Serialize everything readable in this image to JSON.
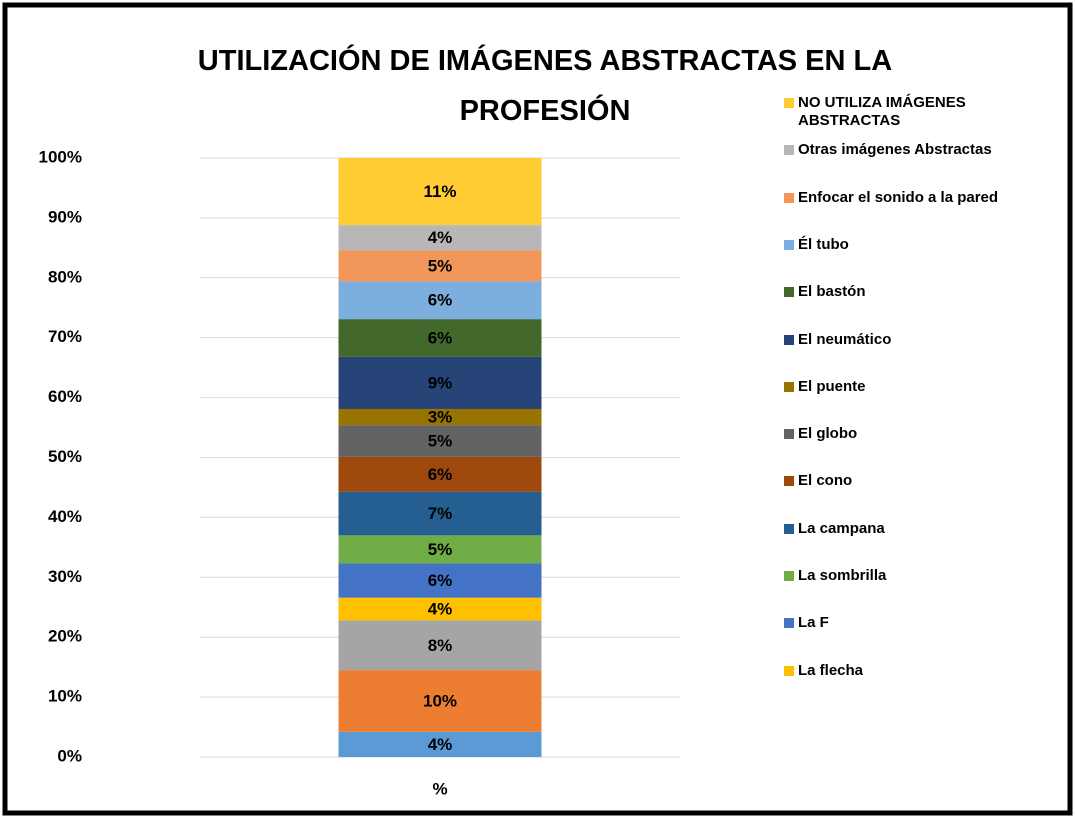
{
  "chart_data": {
    "type": "stacked_bar",
    "title": "UTILIZACIÓN DE IMÁGENES ABSTRACTAS EN LA PROFESIÓN",
    "categories": [
      "%"
    ],
    "ylim": [
      0,
      100
    ],
    "yticks": [
      {
        "value": 0,
        "label": "0%"
      },
      {
        "value": 10,
        "label": "10%"
      },
      {
        "value": 20,
        "label": "20%"
      },
      {
        "value": 30,
        "label": "30%"
      },
      {
        "value": 40,
        "label": "40%"
      },
      {
        "value": 50,
        "label": "50%"
      },
      {
        "value": 60,
        "label": "60%"
      },
      {
        "value": 70,
        "label": "70%"
      },
      {
        "value": 80,
        "label": "80%"
      },
      {
        "value": 90,
        "label": "90%"
      },
      {
        "value": 100,
        "label": "100%"
      }
    ],
    "grid": true,
    "legend": "right",
    "series": [
      {
        "color": "#5b9bd5",
        "values": [
          4.2
        ],
        "value_labels": [
          "4%"
        ]
      },
      {
        "color": "#ed7d31",
        "values": [
          10.3
        ],
        "value_labels": [
          "10%"
        ]
      },
      {
        "color": "#a5a5a5",
        "values": [
          8.3
        ],
        "value_labels": [
          "8%"
        ]
      },
      {
        "name": "La flecha",
        "color": "#ffc000",
        "values": [
          3.8
        ],
        "value_labels": [
          "4%"
        ]
      },
      {
        "name": "La F",
        "color": "#4472c4",
        "values": [
          5.7
        ],
        "value_labels": [
          "6%"
        ]
      },
      {
        "name": "La sombrilla",
        "color": "#70ad47",
        "values": [
          4.7
        ],
        "value_labels": [
          "5%"
        ]
      },
      {
        "name": "La campana",
        "color": "#255e91",
        "values": [
          7.3
        ],
        "value_labels": [
          "7%"
        ]
      },
      {
        "name": "El cono",
        "color": "#9e480e",
        "values": [
          5.8
        ],
        "value_labels": [
          "6%"
        ]
      },
      {
        "name": "El globo",
        "color": "#636363",
        "values": [
          5.3
        ],
        "value_labels": [
          "5%"
        ]
      },
      {
        "name": "El puente",
        "color": "#997300",
        "values": [
          2.7
        ],
        "value_labels": [
          "3%"
        ]
      },
      {
        "name": "El neumático",
        "color": "#264478",
        "values": [
          8.7
        ],
        "value_labels": [
          "9%"
        ]
      },
      {
        "name": "El bastón",
        "color": "#43682b",
        "values": [
          6.3
        ],
        "value_labels": [
          "6%"
        ]
      },
      {
        "name": "Él tubo",
        "color": "#7cafdd",
        "values": [
          6.3
        ],
        "value_labels": [
          "6%"
        ]
      },
      {
        "name": "Enfocar el sonido a la pared",
        "color": "#f1975a",
        "values": [
          5.2
        ],
        "value_labels": [
          "5%"
        ]
      },
      {
        "name": "Otras imágenes Abstractas",
        "color": "#b7b7b7",
        "values": [
          4.2
        ],
        "value_labels": [
          "4%"
        ]
      },
      {
        "name": "NO UTILIZA IMÁGENES ABSTRACTAS",
        "color": "#ffcd33",
        "values": [
          11.2
        ],
        "value_labels": [
          "11%"
        ]
      }
    ]
  }
}
